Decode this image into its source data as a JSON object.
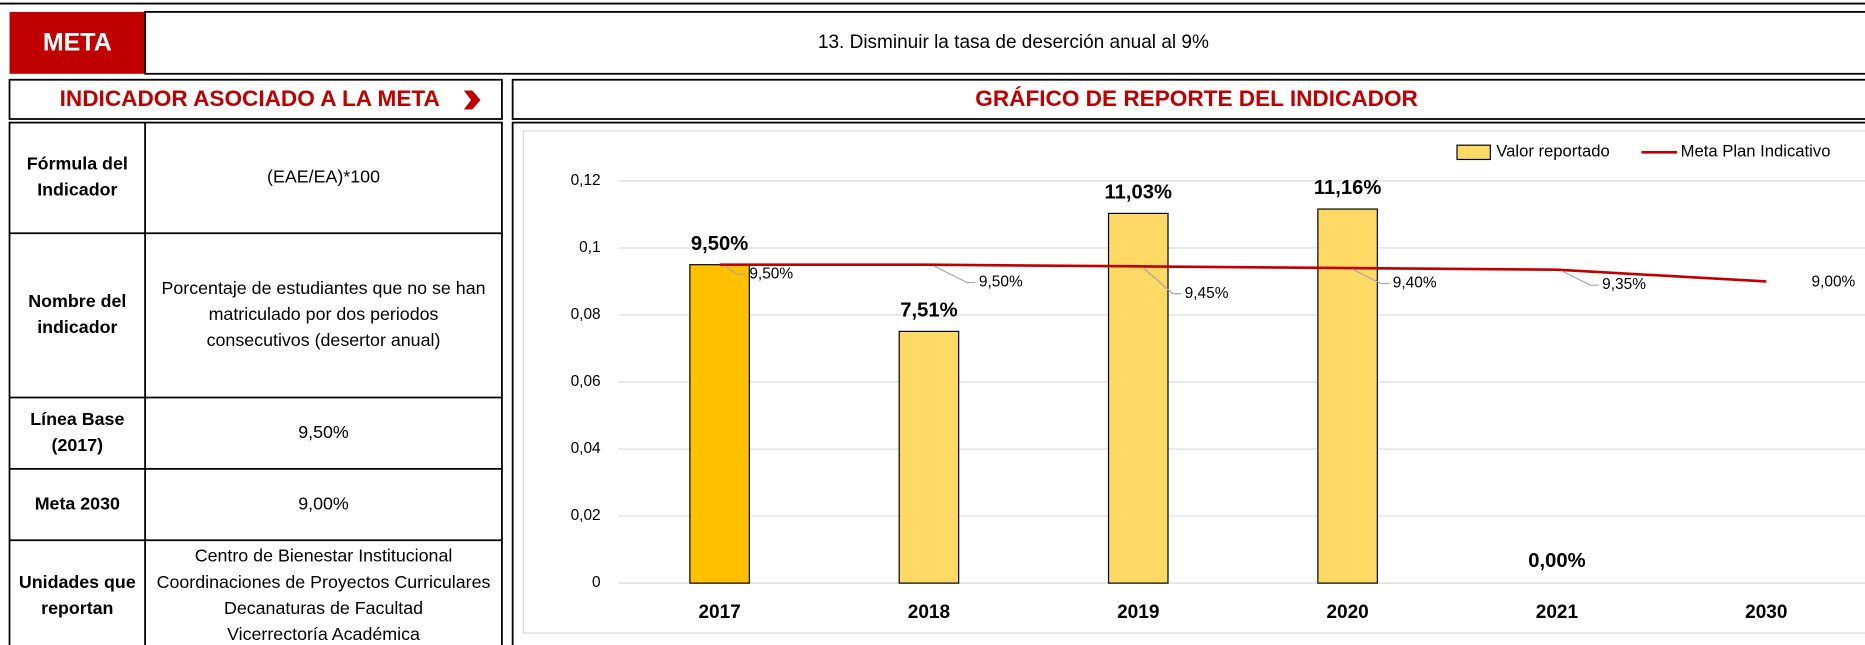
{
  "meta": {
    "label": "META",
    "text": "13. Disminuir la tasa de deserción anual al 9%"
  },
  "indicator_panel": {
    "title": "INDICADOR ASOCIADO A LA META",
    "rows": [
      {
        "label": [
          "Fórmula del",
          "Indicador"
        ],
        "value": [
          "(EAE/EA)*100"
        ]
      },
      {
        "label": [
          "Nombre del",
          "indicador"
        ],
        "value": [
          "Porcentaje de estudiantes que no se han",
          "matriculado por dos periodos",
          "consecutivos (desertor anual)"
        ]
      },
      {
        "label": [
          "Línea Base",
          "(2017)"
        ],
        "value": [
          "9,50%"
        ]
      },
      {
        "label": [
          "Meta 2030"
        ],
        "value": [
          "9,00%"
        ]
      },
      {
        "label": [
          "Unidades que",
          "reportan"
        ],
        "value": [
          "Centro de Bienestar Institucional",
          "Coordinaciones de Proyectos Curriculares",
          "Decanaturas de Facultad",
          "Vicerrectoría Académica"
        ]
      }
    ]
  },
  "chart_panel_title": "GRÁFICO DE REPORTE DEL INDICADOR",
  "chart_data": {
    "type": "bar_line",
    "categories": [
      "2017",
      "2018",
      "2019",
      "2020",
      "2021",
      "2030"
    ],
    "series": [
      {
        "name": "Valor reportado",
        "type": "bar",
        "color": "#ffd966",
        "colors": [
          "#ffc000",
          "#ffd966",
          "#ffd966",
          "#ffd966",
          "#ffd966",
          "#ffd966"
        ],
        "values": [
          0.095,
          0.0751,
          0.1103,
          0.1116,
          0,
          null
        ],
        "value_labels": [
          "9,50%",
          "7,51%",
          "11,03%",
          "11,16%",
          "0,00%",
          null
        ]
      },
      {
        "name": "Meta Plan Indicativo",
        "type": "line",
        "color": "#c00000",
        "values": [
          0.095,
          0.095,
          0.0945,
          0.094,
          0.0935,
          0.09
        ],
        "value_labels": [
          "9,50%",
          "9,50%",
          "9,45%",
          "9,40%",
          "9,35%",
          "9,00%"
        ]
      }
    ],
    "ylim": [
      0,
      0.12
    ],
    "yticks": [
      0,
      {
        "value": 0.02,
        "label": "0,02"
      },
      {
        "value": 0.04,
        "label": "0,04"
      },
      {
        "value": 0.06,
        "label": "0,06"
      },
      {
        "value": 0.08,
        "label": "0,08"
      },
      {
        "value": 0.1,
        "label": "0,1"
      },
      {
        "value": 0.12,
        "label": "0,12"
      }
    ],
    "grid": true,
    "legend": "top-right"
  }
}
